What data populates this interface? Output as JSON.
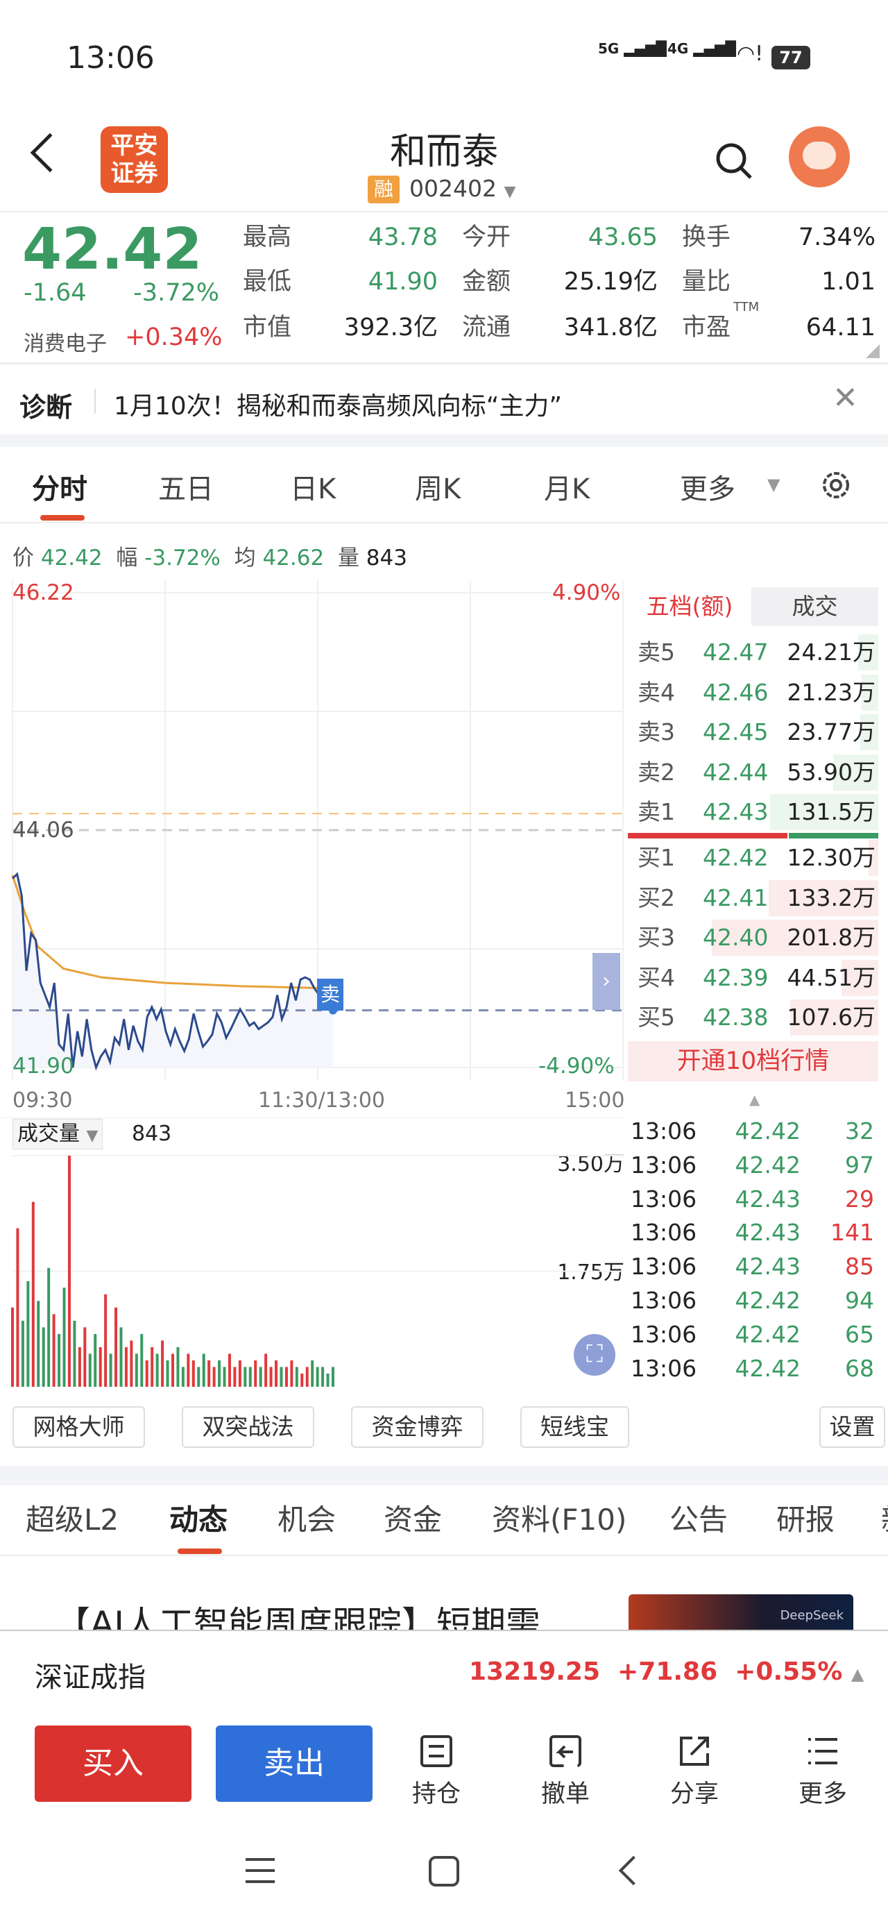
{
  "status_bar": {
    "time": "13:06",
    "net1": "5G",
    "net2": "4G",
    "battery": "77"
  },
  "header": {
    "logo_text": "平安证券",
    "title": "和而泰",
    "margin_badge": "融",
    "code": "002402"
  },
  "quote": {
    "price": "42.42",
    "change": "-1.64",
    "change_pct": "-3.72%",
    "sector": "消费电子",
    "sector_pct": "+0.34%",
    "fields": [
      {
        "label": "最高",
        "value": "43.78",
        "color": "green"
      },
      {
        "label": "今开",
        "value": "43.65",
        "color": "green"
      },
      {
        "label": "换手",
        "value": "7.34%",
        "color": "black"
      },
      {
        "label": "最低",
        "value": "41.90",
        "color": "green"
      },
      {
        "label": "金额",
        "value": "25.19亿",
        "color": "black"
      },
      {
        "label": "量比",
        "value": "1.01",
        "color": "black"
      },
      {
        "label": "市值",
        "value": "392.3亿",
        "color": "black"
      },
      {
        "label": "流通",
        "value": "341.8亿",
        "color": "black"
      },
      {
        "label": "市盈",
        "value": "64.11",
        "color": "black",
        "sup": "TTM"
      }
    ]
  },
  "diagnosis": {
    "label": "诊断",
    "text": "1月10次！揭秘和而泰高频风向标“主力”"
  },
  "chart_tabs": [
    "分时",
    "五日",
    "日K",
    "周K",
    "月K",
    "更多"
  ],
  "info_line": {
    "price_label": "价",
    "price": "42.42",
    "amp_label": "幅",
    "amp": "-3.72%",
    "avg_label": "均",
    "avg": "42.62",
    "vol_label": "量",
    "vol": "843"
  },
  "intraday": {
    "y_max": "46.22",
    "y_mid": "44.06",
    "y_min": "41.90",
    "pct_max": "4.90%",
    "pct_min": "-4.90%",
    "times": [
      "09:30",
      "11:30/13:00",
      "15:00"
    ],
    "sell_marker": "卖",
    "colors": {
      "price": "#2c4a8c",
      "avg": "#e8a23a",
      "up": "#e0393b",
      "down": "#3a9a62"
    },
    "price_series": [
      43.62,
      43.66,
      43.46,
      42.78,
      43.12,
      43.06,
      42.67,
      42.56,
      42.45,
      42.67,
      42.11,
      42.06,
      42.39,
      41.9,
      42.23,
      42.0,
      42.34,
      42.06,
      41.9,
      42.0,
      42.06,
      41.95,
      42.17,
      42.11,
      42.34,
      42.06,
      42.28,
      42.14,
      42.06,
      42.36,
      42.45,
      42.34,
      42.43,
      42.23,
      42.11,
      42.25,
      42.14,
      42.05,
      42.16,
      42.39,
      42.23,
      42.09,
      42.14,
      42.2,
      42.39,
      42.31,
      42.17,
      42.25,
      42.34,
      42.43,
      42.36,
      42.28,
      42.31,
      42.25,
      42.28,
      42.31,
      42.36,
      42.56,
      42.34,
      42.45,
      42.67,
      42.51,
      42.7,
      42.72,
      42.7,
      42.62,
      42.56,
      42.51,
      42.47,
      42.42
    ],
    "avg_series": [
      [
        0,
        43.65
      ],
      [
        5,
        43.3
      ],
      [
        10,
        43.0
      ],
      [
        20,
        42.8
      ],
      [
        35,
        42.72
      ],
      [
        60,
        42.67
      ],
      [
        90,
        42.64
      ],
      [
        126,
        42.62
      ]
    ],
    "elapsed_minutes": 126
  },
  "volume": {
    "label": "成交量",
    "value": "843",
    "scale_top": "3.50万",
    "scale_mid": "1.75万",
    "max": 3.5,
    "values": [
      1.2,
      2.4,
      1.0,
      1.6,
      2.8,
      1.3,
      0.9,
      1.8,
      1.1,
      0.8,
      1.5,
      3.5,
      1.0,
      0.6,
      0.9,
      0.5,
      0.8,
      0.6,
      1.4,
      0.5,
      1.2,
      0.9,
      0.6,
      0.7,
      0.5,
      0.8,
      0.4,
      0.6,
      0.5,
      0.7,
      0.4,
      0.5,
      0.6,
      0.3,
      0.5,
      0.4,
      0.3,
      0.5,
      0.4,
      0.3,
      0.4,
      0.3,
      0.5,
      0.3,
      0.4,
      0.3,
      0.3,
      0.4,
      0.3,
      0.5,
      0.3,
      0.4,
      0.3,
      0.3,
      0.4,
      0.3,
      0.2,
      0.3,
      0.4,
      0.3,
      0.3,
      0.2,
      0.3
    ]
  },
  "order_book": {
    "tab_active": "五档(额)",
    "tab_other": "成交",
    "asks": [
      {
        "label": "卖5",
        "price": "42.47",
        "vol": "24.21万",
        "w": 0.12
      },
      {
        "label": "卖4",
        "price": "42.46",
        "vol": "21.23万",
        "w": 0.1
      },
      {
        "label": "卖3",
        "price": "42.45",
        "vol": "23.77万",
        "w": 0.11
      },
      {
        "label": "卖2",
        "price": "42.44",
        "vol": "53.90万",
        "w": 0.27
      },
      {
        "label": "卖1",
        "price": "42.43",
        "vol": "131.5万",
        "w": 0.65
      }
    ],
    "bids": [
      {
        "label": "买1",
        "price": "42.42",
        "vol": "12.30万",
        "w": 0.06
      },
      {
        "label": "买2",
        "price": "42.41",
        "vol": "133.2万",
        "w": 0.66
      },
      {
        "label": "买3",
        "price": "42.40",
        "vol": "201.8万",
        "w": 1.0
      },
      {
        "label": "买4",
        "price": "42.39",
        "vol": "44.51万",
        "w": 0.22
      },
      {
        "label": "买5",
        "price": "42.38",
        "vol": "107.6万",
        "w": 0.53
      }
    ],
    "upgrade": "开通10档行情"
  },
  "ticks": [
    {
      "t": "13:06",
      "p": "42.42",
      "v": "32",
      "c": "down"
    },
    {
      "t": "13:06",
      "p": "42.42",
      "v": "97",
      "c": "down"
    },
    {
      "t": "13:06",
      "p": "42.43",
      "v": "29",
      "c": "up"
    },
    {
      "t": "13:06",
      "p": "42.43",
      "v": "141",
      "c": "up"
    },
    {
      "t": "13:06",
      "p": "42.43",
      "v": "85",
      "c": "up"
    },
    {
      "t": "13:06",
      "p": "42.42",
      "v": "94",
      "c": "down"
    },
    {
      "t": "13:06",
      "p": "42.42",
      "v": "65",
      "c": "down"
    },
    {
      "t": "13:06",
      "p": "42.42",
      "v": "68",
      "c": "down"
    }
  ],
  "tools": [
    "网格大师",
    "双突战法",
    "资金博弈",
    "短线宝",
    "设置"
  ],
  "content_tabs": [
    "超级L2",
    "动态",
    "机会",
    "资金",
    "资料(F10)",
    "公告",
    "研报",
    "新"
  ],
  "news": {
    "headline": "【AI人工智能周度跟踪】短期需",
    "thumb_text": "DeepSeek"
  },
  "index_bar": {
    "name": "深证成指",
    "value": "13219.25",
    "change": "+71.86",
    "pct": "+0.55%"
  },
  "bottom": {
    "buy": "买入",
    "sell": "卖出",
    "actions": [
      "持仓",
      "撤单",
      "分享",
      "更多"
    ]
  }
}
